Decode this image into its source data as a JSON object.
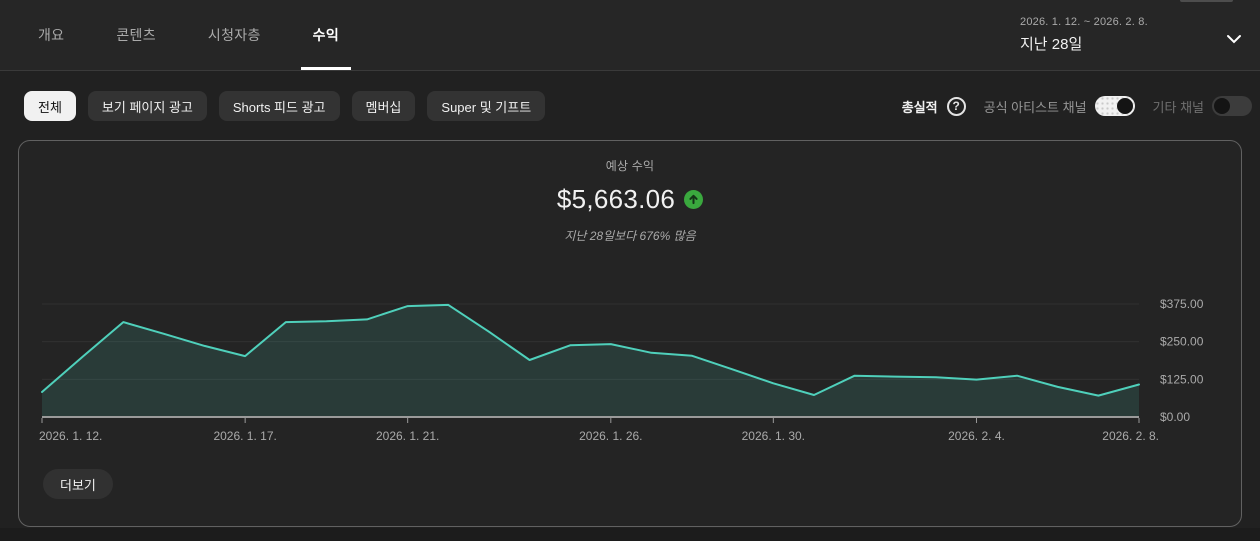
{
  "header": {
    "tabs": [
      {
        "id": "overview",
        "label": "개요",
        "active": false
      },
      {
        "id": "content",
        "label": "콘텐츠",
        "active": false
      },
      {
        "id": "audience",
        "label": "시청자층",
        "active": false
      },
      {
        "id": "revenue",
        "label": "수익",
        "active": true
      }
    ],
    "date_range": "2026. 1. 12. ~ 2026. 2. 8.",
    "period": "지난 28일"
  },
  "filters": {
    "chips": [
      {
        "id": "all",
        "label": "전체",
        "selected": true
      },
      {
        "id": "watch-page-ads",
        "label": "보기 페이지 광고",
        "selected": false
      },
      {
        "id": "shorts-feed-ads",
        "label": "Shorts 피드 광고",
        "selected": false
      },
      {
        "id": "memberships",
        "label": "멤버십",
        "selected": false
      },
      {
        "id": "super-gifts",
        "label": "Super 및 기프트",
        "selected": false
      }
    ],
    "metric_label": "총실적",
    "toggles": [
      {
        "id": "official-artist-channel",
        "label": "공식 아티스트 채널",
        "on": true
      },
      {
        "id": "other-channels",
        "label": "기타 채널",
        "on": false
      }
    ]
  },
  "card": {
    "metric_title": "예상 수익",
    "metric_value": "$5,663.06",
    "trend": "up",
    "comparison": "지난 28일보다 676% 많음",
    "more_button": "더보기"
  },
  "chart_data": {
    "type": "area",
    "title": "예상 수익",
    "total": 5663.06,
    "x": [
      "2026-01-12",
      "2026-01-13",
      "2026-01-14",
      "2026-01-15",
      "2026-01-16",
      "2026-01-17",
      "2026-01-18",
      "2026-01-19",
      "2026-01-20",
      "2026-01-21",
      "2026-01-22",
      "2026-01-23",
      "2026-01-24",
      "2026-01-25",
      "2026-01-26",
      "2026-01-27",
      "2026-01-28",
      "2026-01-29",
      "2026-01-30",
      "2026-01-31",
      "2026-02-01",
      "2026-02-02",
      "2026-02-03",
      "2026-02-04",
      "2026-02-05",
      "2026-02-06",
      "2026-02-07",
      "2026-02-08"
    ],
    "values": [
      83,
      200,
      315,
      276,
      236,
      202,
      315,
      318,
      324,
      368,
      372,
      283,
      189,
      238,
      242,
      213,
      203,
      158,
      112,
      73,
      137,
      134,
      132,
      124,
      137,
      100,
      71,
      108
    ],
    "ylim": [
      0,
      375
    ],
    "y_ticks": [
      {
        "label": "$375.00",
        "value": 375
      },
      {
        "label": "$250.00",
        "value": 250
      },
      {
        "label": "$125.00",
        "value": 125
      },
      {
        "label": "$0.00",
        "value": 0
      }
    ],
    "x_ticks": [
      {
        "index": 0,
        "label": "2026. 1. 12."
      },
      {
        "index": 5,
        "label": "2026. 1. 17."
      },
      {
        "index": 9,
        "label": "2026. 1. 21."
      },
      {
        "index": 14,
        "label": "2026. 1. 26."
      },
      {
        "index": 18,
        "label": "2026. 1. 30."
      },
      {
        "index": 23,
        "label": "2026. 2. 4."
      },
      {
        "index": 27,
        "label": "2026. 2. 8."
      }
    ],
    "grid": true,
    "legend": "none",
    "colors": {
      "line": "#4fd0bb",
      "fill": "rgba(79,208,187,0.14)",
      "axis": "#9a9a9a",
      "gridline": "#313131",
      "tick_text": "#aaaaaa",
      "trend_green": "#3aa83e"
    }
  }
}
